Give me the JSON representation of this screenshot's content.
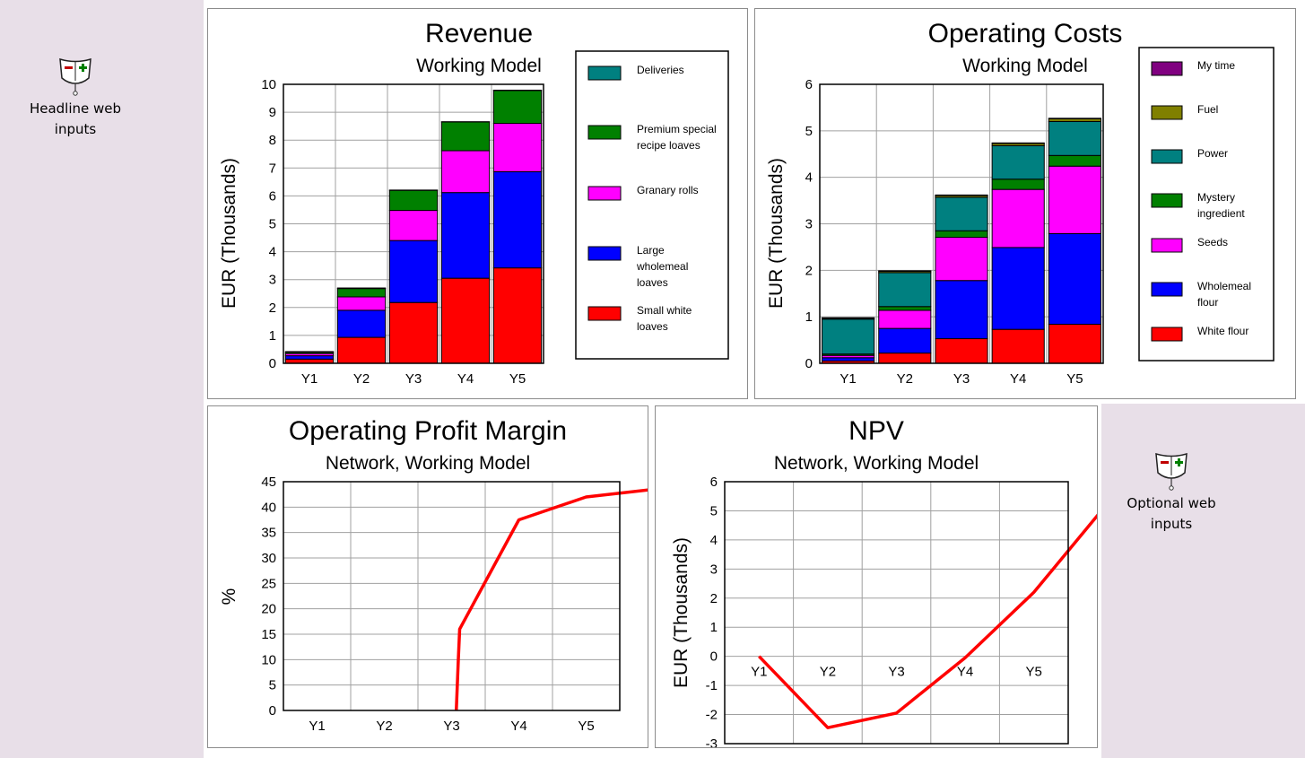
{
  "widgets": {
    "headline": {
      "label_line1": "Headline web",
      "label_line2": "inputs",
      "icon": "slider-control-icon"
    },
    "optional": {
      "label_line1": "Optional web",
      "label_line2": "inputs",
      "icon": "slider-control-icon"
    }
  },
  "colors": {
    "red": "#ff0000",
    "blue": "#0000ff",
    "magenta": "#ff00ff",
    "green": "#008000",
    "teal": "#008080",
    "olive": "#808000",
    "purple": "#800080",
    "line": "#ff0000",
    "sidebar": "#e8dfe8",
    "grid": "#a0a0a0"
  },
  "chart_data": [
    {
      "id": "revenue",
      "type": "bar",
      "stacked": true,
      "title": "Revenue",
      "subtitle": "Working Model",
      "ylabel": "EUR  (Thousands)",
      "categories": [
        "Y1",
        "Y2",
        "Y3",
        "Y4",
        "Y5"
      ],
      "ylim": [
        0,
        10
      ],
      "yticks": [
        0,
        1,
        2,
        3,
        4,
        5,
        6,
        7,
        8,
        9,
        10
      ],
      "grid": true,
      "legend_position": "right",
      "series": [
        {
          "name": "Small white loaves",
          "color": "#ff0000",
          "values": [
            0.15,
            0.93,
            2.18,
            3.05,
            3.42
          ]
        },
        {
          "name": "Large wholemeal loaves",
          "color": "#0000ff",
          "values": [
            0.12,
            0.97,
            2.22,
            3.07,
            3.45
          ]
        },
        {
          "name": "Granary rolls",
          "color": "#ff00ff",
          "values": [
            0.08,
            0.48,
            1.08,
            1.5,
            1.73
          ]
        },
        {
          "name": "Premium special recipe loaves",
          "color": "#008000",
          "values": [
            0.05,
            0.3,
            0.72,
            1.03,
            1.18
          ]
        },
        {
          "name": "Deliveries",
          "color": "#008080",
          "values": [
            0.02,
            0.02,
            0.01,
            0.01,
            0.01
          ]
        }
      ]
    },
    {
      "id": "opcosts",
      "type": "bar",
      "stacked": true,
      "title": "Operating Costs",
      "subtitle": "Working Model",
      "ylabel": "EUR  (Thousands)",
      "categories": [
        "Y1",
        "Y2",
        "Y3",
        "Y4",
        "Y5"
      ],
      "ylim": [
        0,
        6
      ],
      "yticks": [
        0,
        1,
        2,
        3,
        4,
        5,
        6
      ],
      "grid": true,
      "legend_position": "right",
      "series": [
        {
          "name": "White flour",
          "color": "#ff0000",
          "values": [
            0.05,
            0.22,
            0.53,
            0.73,
            0.84
          ]
        },
        {
          "name": "Wholemeal flour",
          "color": "#0000ff",
          "values": [
            0.07,
            0.53,
            1.25,
            1.76,
            1.95
          ]
        },
        {
          "name": "Seeds",
          "color": "#ff00ff",
          "values": [
            0.05,
            0.39,
            0.93,
            1.25,
            1.45
          ]
        },
        {
          "name": "Mystery ingredient",
          "color": "#008000",
          "values": [
            0.03,
            0.08,
            0.14,
            0.22,
            0.23
          ]
        },
        {
          "name": "Power",
          "color": "#008080",
          "values": [
            0.75,
            0.73,
            0.72,
            0.72,
            0.73
          ]
        },
        {
          "name": "Fuel",
          "color": "#808000",
          "values": [
            0.02,
            0.03,
            0.04,
            0.05,
            0.06
          ]
        },
        {
          "name": "My time",
          "color": "#800080",
          "values": [
            0.01,
            0.01,
            0.01,
            0.01,
            0.01
          ]
        }
      ]
    },
    {
      "id": "margin",
      "type": "line",
      "title": "Operating Profit Margin",
      "subtitle": "Network, Working Model",
      "ylabel": "%",
      "categories": [
        "Y1",
        "Y2",
        "Y3",
        "Y4",
        "Y5"
      ],
      "ylim": [
        0,
        45
      ],
      "yticks": [
        0,
        5,
        10,
        15,
        20,
        25,
        30,
        35,
        40,
        45
      ],
      "grid": true,
      "series": [
        {
          "color": "#ff0000",
          "points": [
            [
              2.57,
              0
            ],
            [
              2.6,
              10
            ],
            [
              2.62,
              16
            ],
            [
              3.5,
              37.5
            ],
            [
              4.5,
              42
            ],
            [
              5.5,
              43.5
            ]
          ]
        }
      ]
    },
    {
      "id": "npv",
      "type": "line",
      "title": "NPV",
      "subtitle": "Network, Working Model",
      "ylabel": "EUR  (Thousands)",
      "categories": [
        "Y1",
        "Y2",
        "Y3",
        "Y4",
        "Y5"
      ],
      "ylim": [
        -3,
        6
      ],
      "yticks": [
        -3,
        -2,
        -1,
        0,
        1,
        2,
        3,
        4,
        5,
        6
      ],
      "grid": true,
      "series": [
        {
          "color": "#ff0000",
          "points": [
            [
              0.5,
              0
            ],
            [
              1.5,
              -2.45
            ],
            [
              2.5,
              -1.95
            ],
            [
              3.5,
              -0.05
            ],
            [
              4.5,
              2.2
            ],
            [
              5.5,
              5.05
            ]
          ]
        }
      ]
    }
  ]
}
